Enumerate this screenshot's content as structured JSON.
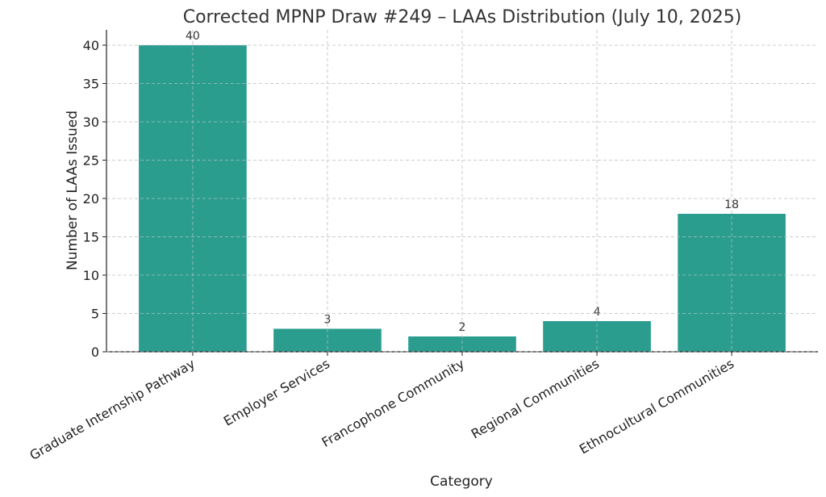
{
  "chart_data": {
    "type": "bar",
    "title": "Corrected MPNP Draw #249 – LAAs Distribution (July 10, 2025)",
    "xlabel": "Category",
    "ylabel": "Number of LAAs Issued",
    "categories": [
      "Graduate Internship Pathway",
      "Employer Services",
      "Francophone Community",
      "Regional Communities",
      "Ethnocultural Communities"
    ],
    "values": [
      40,
      3,
      2,
      4,
      18
    ],
    "ylim": [
      0,
      42
    ],
    "yticks": [
      0,
      5,
      10,
      15,
      20,
      25,
      30,
      35,
      40
    ],
    "grid": true,
    "bar_color": "#2a9d8f",
    "data_labels": [
      "40",
      "3",
      "2",
      "4",
      "18"
    ]
  }
}
